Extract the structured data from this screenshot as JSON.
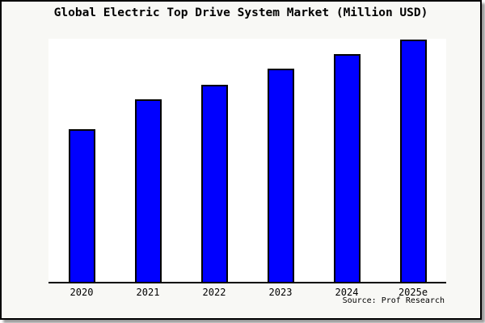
{
  "title": "Global Electric Top Drive System Market (Million USD)",
  "source": "Source: Prof Research",
  "colors": {
    "canvas_bg": "#f8f8f5",
    "plot_bg": "#ffffff",
    "bar_fill": "#0000ff",
    "bar_border": "#000000",
    "axis": "#000000",
    "frame_border": "#000000",
    "frame_shadow": "#999999",
    "text": "#000000"
  },
  "chart_data": {
    "type": "bar",
    "title": "Global Electric Top Drive System Market (Million USD)",
    "units": "Million USD",
    "categories": [
      "2020",
      "2021",
      "2022",
      "2023",
      "2024",
      "2025e"
    ],
    "values": [
      63,
      75.3,
      81.3,
      88,
      94,
      100
    ],
    "values_note": "No y-axis scale shown in chart; values are relative bar heights normalized to 2025e = 100",
    "xlabel": "",
    "ylabel": "",
    "ylim": [
      0,
      101
    ],
    "grid": false,
    "legend": false,
    "y_axis_labels_visible": false,
    "bar_color": "#0000ff",
    "bar_border_color": "#000000"
  }
}
